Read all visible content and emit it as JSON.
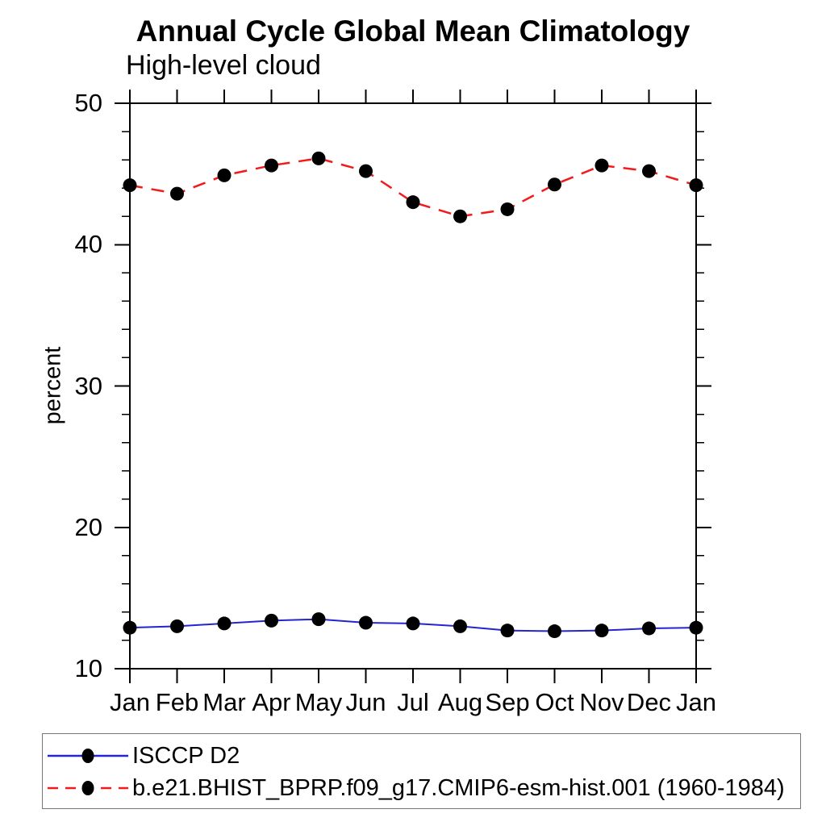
{
  "chart_data": {
    "type": "line",
    "title": "Annual Cycle Global Mean Climatology",
    "subtitle": "High-level cloud",
    "ylabel": "percent",
    "categories": [
      "Jan",
      "Feb",
      "Mar",
      "Apr",
      "May",
      "Jun",
      "Jul",
      "Aug",
      "Sep",
      "Oct",
      "Nov",
      "Dec",
      "Jan"
    ],
    "ylim": [
      10,
      50
    ],
    "y_major_ticks": [
      10,
      20,
      30,
      40,
      50
    ],
    "y_minor_tick_step": 2,
    "grid": false,
    "legend_position": "bottom",
    "axis_color": "#000000",
    "marker_color": "#000000",
    "series": [
      {
        "name": "ISCCP D2",
        "color": "#2424d0",
        "style": "solid",
        "marker": "filled-circle",
        "values": [
          12.9,
          13.0,
          13.2,
          13.4,
          13.5,
          13.25,
          13.2,
          13.0,
          12.7,
          12.65,
          12.7,
          12.85,
          12.9
        ]
      },
      {
        "name": "b.e21.BHIST_BPRP.f09_g17.CMIP6-esm-hist.001 (1960-1984)",
        "color": "#f21b1b",
        "style": "dashed",
        "marker": "filled-circle",
        "values": [
          44.2,
          43.6,
          44.9,
          45.6,
          46.1,
          45.2,
          43.0,
          42.0,
          42.5,
          44.25,
          45.6,
          45.2,
          44.2
        ]
      }
    ]
  }
}
